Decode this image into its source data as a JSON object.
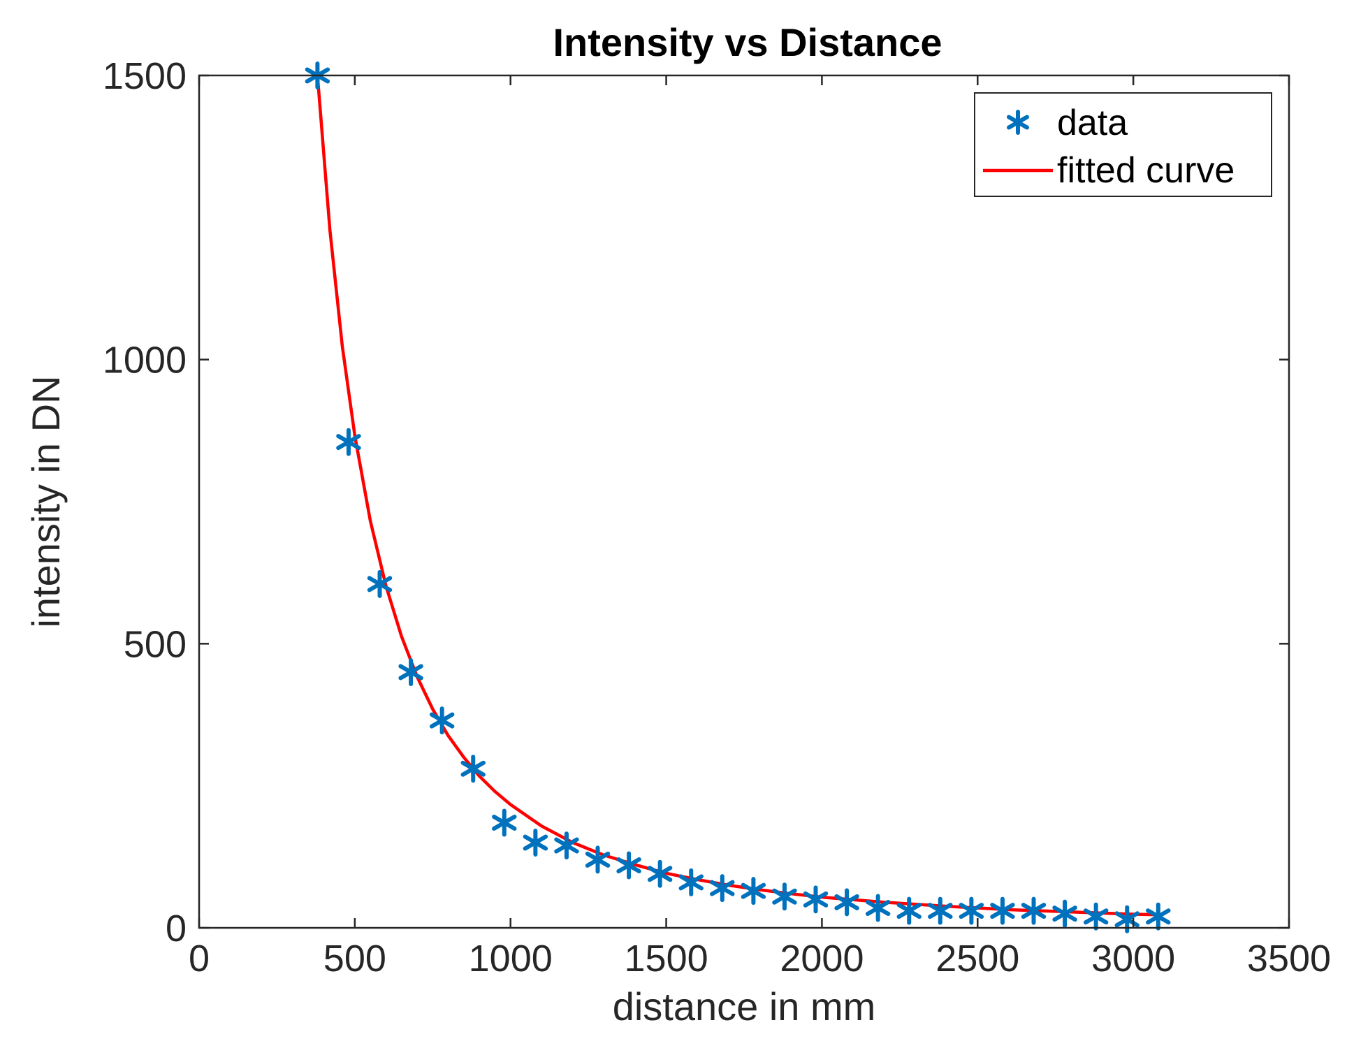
{
  "chart_data": {
    "type": "scatter",
    "title": "Intensity vs Distance",
    "xlabel": "distance in mm",
    "ylabel": "intensity in DN",
    "xlim": [
      0,
      3500
    ],
    "ylim": [
      0,
      1500
    ],
    "xticks": [
      0,
      500,
      1000,
      1500,
      2000,
      2500,
      3000,
      3500
    ],
    "yticks": [
      0,
      500,
      1000,
      1500
    ],
    "grid": false,
    "legend_position": "top-right",
    "series": [
      {
        "name": "data",
        "kind": "markers",
        "marker": "asterisk",
        "color": "#0072BD",
        "x": [
          380,
          480,
          580,
          680,
          780,
          880,
          980,
          1080,
          1180,
          1280,
          1380,
          1480,
          1580,
          1680,
          1780,
          1880,
          1980,
          2080,
          2180,
          2280,
          2380,
          2480,
          2580,
          2680,
          2780,
          2880,
          2980,
          3080
        ],
        "y": [
          1500,
          855,
          605,
          450,
          365,
          280,
          185,
          150,
          145,
          120,
          110,
          95,
          80,
          70,
          65,
          55,
          50,
          45,
          35,
          30,
          30,
          30,
          30,
          30,
          25,
          20,
          15,
          20
        ]
      },
      {
        "name": "fitted curve",
        "kind": "line",
        "color": "#FF0000",
        "x": [
          380,
          420,
          460,
          500,
          550,
          600,
          650,
          700,
          750,
          800,
          850,
          900,
          950,
          1000,
          1100,
          1200,
          1300,
          1400,
          1500,
          1600,
          1700,
          1800,
          1900,
          2000,
          2200,
          2400,
          2600,
          2800,
          3000,
          3080
        ],
        "y": [
          1500,
          1228,
          1023,
          866,
          716,
          602,
          513,
          442,
          385,
          338,
          300,
          267,
          240,
          217,
          179,
          150,
          128,
          111,
          96,
          85,
          75,
          67,
          60,
          54,
          45,
          38,
          32,
          28,
          24,
          23
        ]
      }
    ]
  }
}
